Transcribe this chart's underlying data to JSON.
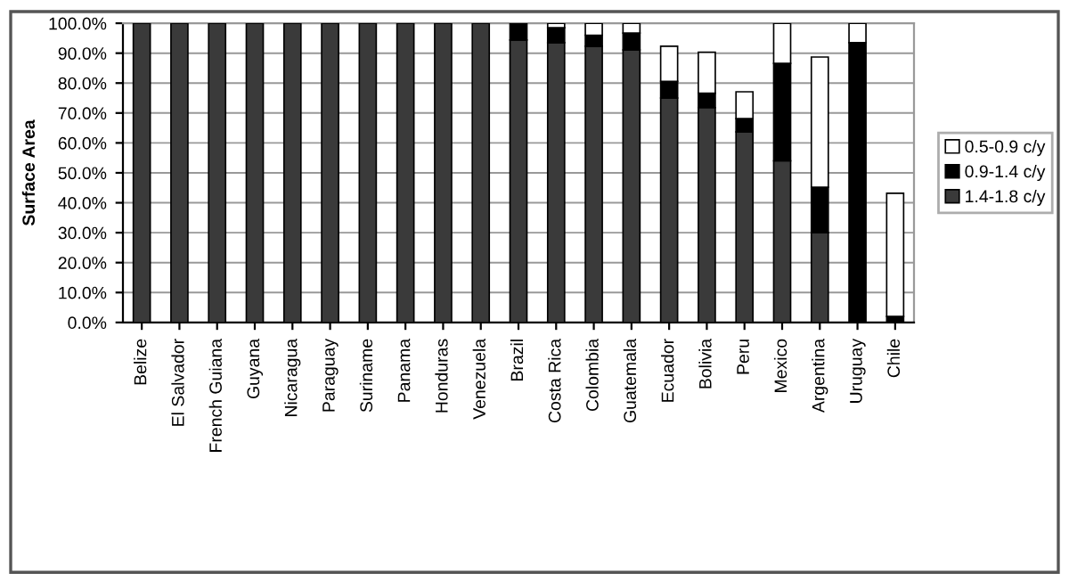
{
  "chart_data": {
    "type": "bar",
    "stacked": true,
    "ylabel": "Surface Area",
    "categories": [
      "Belize",
      "El Salvador",
      "French Guiana",
      "Guyana",
      "Nicaragua",
      "Paraguay",
      "Suriname",
      "Panama",
      "Honduras",
      "Venezuela",
      "Brazil",
      "Costa Rica",
      "Colombia",
      "Guatemala",
      "Ecuador",
      "Bolivia",
      "Peru",
      "Mexico",
      "Argentina",
      "Uruguay",
      "Chile"
    ],
    "series": [
      {
        "name": "1.4-1.8 c/y",
        "color": "#3a3a3a",
        "values": [
          100,
          100,
          100,
          100,
          100,
          100,
          100,
          100,
          100,
          100,
          94.4,
          93.5,
          92.3,
          91.1,
          75,
          71.8,
          63.7,
          54,
          30,
          0,
          0
        ]
      },
      {
        "name": "0.9-1.4 c/y",
        "color": "#000000",
        "values": [
          0,
          0,
          0,
          0,
          0,
          0,
          0,
          0,
          0,
          0,
          5.6,
          5,
          3.7,
          5.6,
          5.6,
          4.8,
          4.4,
          32.6,
          15.2,
          93.5,
          2
        ]
      },
      {
        "name": "0.5-0.9 c/y",
        "color": "#ffffff",
        "values": [
          0,
          0,
          0,
          0,
          0,
          0,
          0,
          0,
          0,
          0,
          0,
          1.5,
          4,
          3.3,
          11.7,
          13.7,
          9,
          13.4,
          43.5,
          6.5,
          41.2
        ]
      }
    ],
    "ylim": [
      0,
      100
    ],
    "yticks": [
      {
        "value": 0,
        "label": "0.0%"
      },
      {
        "value": 10,
        "label": "10.0%"
      },
      {
        "value": 20,
        "label": "20.0%"
      },
      {
        "value": 30,
        "label": "30.0%"
      },
      {
        "value": 40,
        "label": "40.0%"
      },
      {
        "value": 50,
        "label": "50.0%"
      },
      {
        "value": 60,
        "label": "60.0%"
      },
      {
        "value": 70,
        "label": "70.0%"
      },
      {
        "value": 80,
        "label": "80.0%"
      },
      {
        "value": 90,
        "label": "90.0%"
      },
      {
        "value": 100,
        "label": "100.0%"
      }
    ],
    "grid": "y",
    "legend": "right"
  }
}
